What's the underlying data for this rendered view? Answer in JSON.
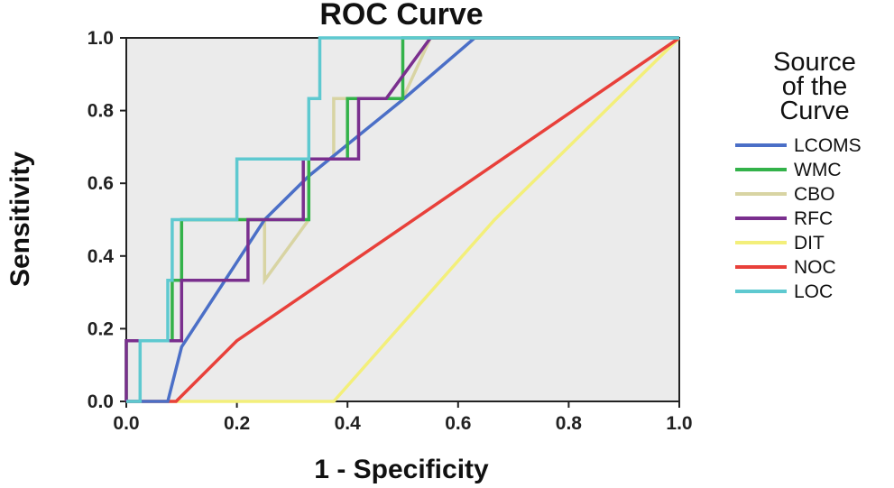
{
  "chart_data": {
    "type": "line",
    "title": "ROC Curve",
    "xlabel": "1 - Specificity",
    "ylabel": "Sensitivity",
    "xlim": [
      0,
      1
    ],
    "ylim": [
      0,
      1
    ],
    "x_ticks": [
      "0.0",
      "0.2",
      "0.4",
      "0.6",
      "0.8",
      "1.0"
    ],
    "y_ticks": [
      "0.0",
      "0.2",
      "0.4",
      "0.6",
      "0.8",
      "1.0"
    ],
    "grid": false,
    "plot_background": "#ebebeb",
    "legend_position": "right",
    "legend": {
      "title_lines": [
        "Source",
        "of the",
        "Curve"
      ]
    },
    "series": [
      {
        "name": "LCOMS",
        "color": "#4b6fc7",
        "x": [
          0.0,
          0.075,
          0.1,
          0.25,
          0.33,
          0.5,
          0.63,
          1.0
        ],
        "y": [
          0.0,
          0.0,
          0.15,
          0.5,
          0.62,
          0.83,
          1.0,
          1.0
        ]
      },
      {
        "name": "WMC",
        "color": "#33b24a",
        "x": [
          0.0,
          0.0,
          0.083,
          0.083,
          0.1,
          0.1,
          0.33,
          0.33,
          0.4,
          0.4,
          0.5,
          0.5,
          0.58,
          0.58,
          1.0
        ],
        "y": [
          0.0,
          0.167,
          0.167,
          0.333,
          0.333,
          0.5,
          0.5,
          0.667,
          0.667,
          0.833,
          0.833,
          1.0,
          1.0,
          1.0,
          1.0
        ]
      },
      {
        "name": "CBO",
        "color": "#d8d4a3",
        "x": [
          0.0,
          0.0,
          0.083,
          0.083,
          0.1,
          0.1,
          0.25,
          0.25,
          0.33,
          0.33,
          0.375,
          0.375,
          0.5,
          0.55,
          1.0
        ],
        "y": [
          0.0,
          0.167,
          0.167,
          0.333,
          0.333,
          0.5,
          0.5,
          0.333,
          0.5,
          0.667,
          0.667,
          0.833,
          0.833,
          1.0,
          1.0
        ]
      },
      {
        "name": "RFC",
        "color": "#7a2f8e",
        "x": [
          0.0,
          0.0,
          0.083,
          0.083,
          0.1,
          0.1,
          0.22,
          0.22,
          0.32,
          0.32,
          0.42,
          0.42,
          0.47,
          0.47,
          0.55,
          1.0
        ],
        "y": [
          0.0,
          0.167,
          0.167,
          0.167,
          0.167,
          0.333,
          0.333,
          0.5,
          0.5,
          0.667,
          0.667,
          0.833,
          0.833,
          0.833,
          1.0,
          1.0
        ]
      },
      {
        "name": "DIT",
        "color": "#f3ef7a",
        "x": [
          0.0,
          0.375,
          0.666,
          1.0
        ],
        "y": [
          0.0,
          0.0,
          0.5,
          1.0
        ]
      },
      {
        "name": "NOC",
        "color": "#e8403a",
        "x": [
          0.0,
          0.09,
          0.2,
          1.0
        ],
        "y": [
          0.0,
          0.0,
          0.167,
          1.0
        ]
      },
      {
        "name": "LOC",
        "color": "#5ec9d0",
        "x": [
          0.0,
          0.025,
          0.025,
          0.075,
          0.075,
          0.083,
          0.083,
          0.2,
          0.2,
          0.33,
          0.33,
          0.35,
          0.35,
          0.375,
          0.375,
          1.0
        ],
        "y": [
          0.0,
          0.0,
          0.167,
          0.167,
          0.333,
          0.333,
          0.5,
          0.5,
          0.667,
          0.667,
          0.833,
          0.833,
          1.0,
          1.0,
          1.0,
          1.0
        ]
      }
    ]
  }
}
